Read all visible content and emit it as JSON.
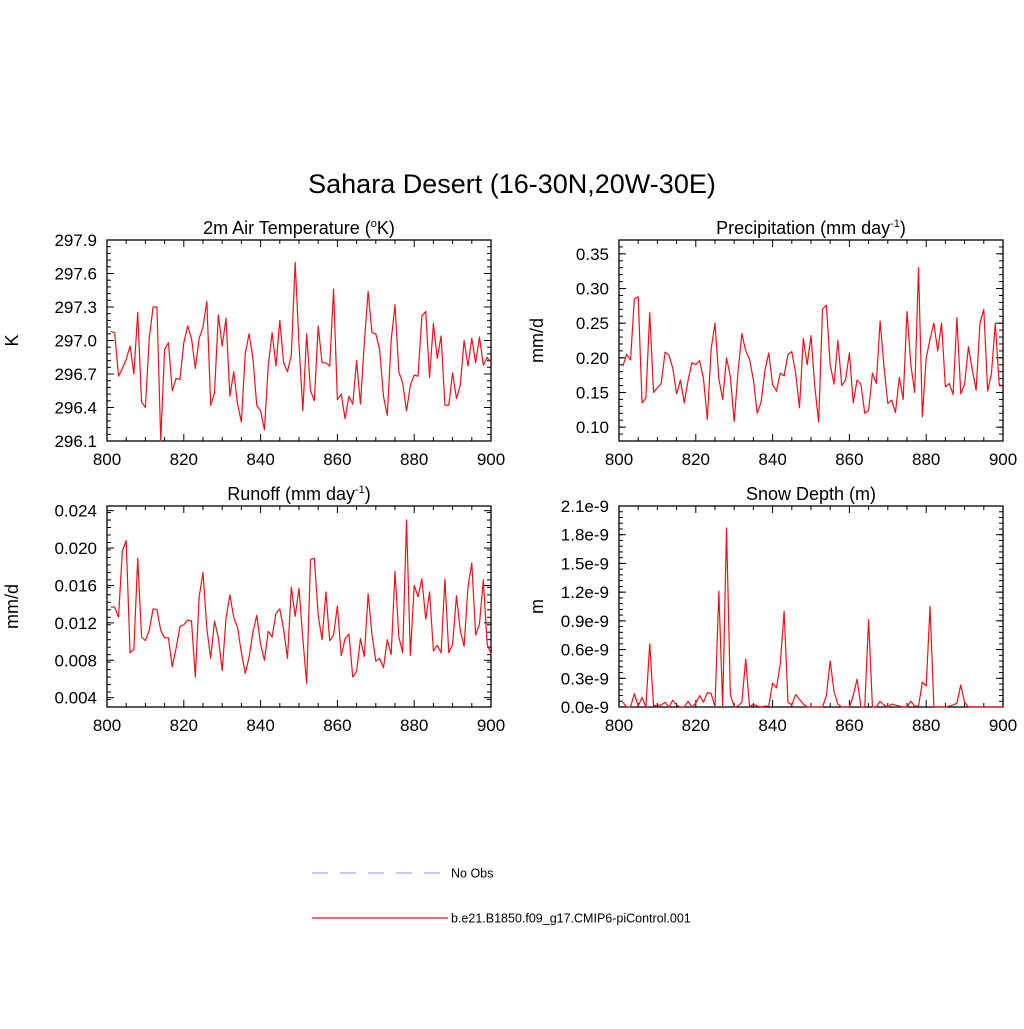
{
  "title": "Sahara Desert (16-30N,20W-30E)",
  "colors": {
    "model": "#e8141b",
    "obs": "#a8a8f0",
    "axis": "#000000"
  },
  "legend": {
    "obs_label": "No Obs",
    "model_label": "b.e21.B1850.f09_g17.CMIP6-piControl.001"
  },
  "chart_data": [
    {
      "type": "line",
      "title": {
        "text": "2m Air Temperature (",
        "sup": "o",
        "tail": "K)"
      },
      "ylabel": "K",
      "xlim": [
        800,
        900
      ],
      "ylim": [
        296.1,
        297.9
      ],
      "xticks": [
        800,
        820,
        840,
        860,
        880,
        900
      ],
      "xtick_labels": [
        "800",
        "820",
        "840",
        "860",
        "880",
        "900"
      ],
      "yticks": [
        296.1,
        296.4,
        296.7,
        297.0,
        297.3,
        297.6,
        297.9
      ],
      "ytick_labels": [
        "296.1",
        "296.4",
        "296.7",
        "297.0",
        "297.3",
        "297.6",
        "297.9"
      ],
      "series": [
        {
          "x_start": 801,
          "values": [
            297.08,
            297.07,
            296.68,
            296.75,
            296.83,
            296.95,
            296.7,
            297.25,
            296.45,
            296.4,
            297.02,
            297.3,
            297.3,
            296.1,
            296.92,
            296.98,
            296.55,
            296.66,
            296.65,
            296.98,
            297.13,
            297.02,
            296.75,
            297.02,
            297.12,
            297.35,
            296.42,
            296.53,
            297.23,
            296.95,
            297.2,
            296.5,
            296.72,
            296.43,
            296.27,
            296.88,
            297.06,
            296.84,
            296.42,
            296.37,
            296.2,
            296.78,
            297.07,
            296.77,
            297.18,
            296.8,
            296.72,
            296.87,
            297.7,
            296.97,
            296.37,
            297.06,
            296.55,
            296.46,
            297.13,
            296.8,
            296.8,
            296.77,
            297.46,
            296.47,
            296.52,
            296.3,
            296.5,
            296.43,
            296.82,
            296.43,
            296.97,
            297.44,
            297.07,
            297.06,
            296.92,
            296.5,
            296.33,
            297.0,
            297.32,
            296.72,
            296.62,
            296.37,
            296.6,
            296.69,
            296.68,
            297.22,
            297.26,
            296.67,
            297.15,
            296.84,
            297.04,
            296.42,
            296.42,
            296.71,
            296.48,
            296.6,
            297.0,
            296.77,
            297.02,
            296.8,
            297.03,
            296.78,
            296.85,
            296.8
          ]
        }
      ]
    },
    {
      "type": "line",
      "title": {
        "text": "Precipitation (mm day",
        "sup": "-1",
        "tail": ")"
      },
      "ylabel": "mm/d",
      "xlim": [
        800,
        900
      ],
      "ylim": [
        0.08,
        0.37
      ],
      "xticks": [
        800,
        820,
        840,
        860,
        880,
        900
      ],
      "xtick_labels": [
        "800",
        "820",
        "840",
        "860",
        "880",
        "900"
      ],
      "yticks": [
        0.1,
        0.15,
        0.2,
        0.25,
        0.3,
        0.35
      ],
      "ytick_labels": [
        "0.10",
        "0.15",
        "0.20",
        "0.25",
        "0.30",
        "0.35"
      ],
      "series": [
        {
          "x_start": 801,
          "values": [
            0.188,
            0.205,
            0.197,
            0.285,
            0.288,
            0.135,
            0.142,
            0.265,
            0.15,
            0.157,
            0.163,
            0.208,
            0.204,
            0.185,
            0.148,
            0.168,
            0.135,
            0.168,
            0.193,
            0.19,
            0.196,
            0.17,
            0.111,
            0.213,
            0.25,
            0.17,
            0.14,
            0.2,
            0.173,
            0.108,
            0.18,
            0.235,
            0.21,
            0.198,
            0.168,
            0.12,
            0.136,
            0.182,
            0.207,
            0.161,
            0.152,
            0.178,
            0.174,
            0.205,
            0.209,
            0.178,
            0.128,
            0.228,
            0.19,
            0.232,
            0.158,
            0.107,
            0.27,
            0.276,
            0.19,
            0.162,
            0.225,
            0.16,
            0.168,
            0.207,
            0.135,
            0.168,
            0.162,
            0.12,
            0.124,
            0.178,
            0.163,
            0.253,
            0.188,
            0.134,
            0.139,
            0.121,
            0.172,
            0.14,
            0.267,
            0.19,
            0.15,
            0.33,
            0.115,
            0.2,
            0.227,
            0.25,
            0.21,
            0.25,
            0.158,
            0.163,
            0.147,
            0.258,
            0.148,
            0.162,
            0.216,
            0.183,
            0.153,
            0.25,
            0.27,
            0.152,
            0.178,
            0.25,
            0.162,
            0.158
          ]
        }
      ]
    },
    {
      "type": "line",
      "title": {
        "text": "Runoff (mm day",
        "sup": "-1",
        "tail": ")"
      },
      "ylabel": "mm/d",
      "xlim": [
        800,
        900
      ],
      "ylim": [
        0.003,
        0.0245
      ],
      "xticks": [
        800,
        820,
        840,
        860,
        880,
        900
      ],
      "xtick_labels": [
        "800",
        "820",
        "840",
        "860",
        "880",
        "900"
      ],
      "yticks": [
        0.004,
        0.008,
        0.012,
        0.016,
        0.02,
        0.024
      ],
      "ytick_labels": [
        "0.004",
        "0.008",
        "0.012",
        "0.016",
        "0.020",
        "0.024"
      ],
      "series": [
        {
          "x_start": 801,
          "values": [
            0.0137,
            0.0137,
            0.0126,
            0.0197,
            0.0208,
            0.0088,
            0.0092,
            0.0189,
            0.0105,
            0.0101,
            0.0112,
            0.0135,
            0.0134,
            0.0112,
            0.0104,
            0.0104,
            0.0073,
            0.0093,
            0.0116,
            0.0118,
            0.0123,
            0.0122,
            0.0062,
            0.0148,
            0.0174,
            0.0114,
            0.0082,
            0.0122,
            0.0104,
            0.0069,
            0.0125,
            0.015,
            0.0126,
            0.0115,
            0.0088,
            0.0066,
            0.0083,
            0.011,
            0.0128,
            0.0097,
            0.008,
            0.0111,
            0.0105,
            0.013,
            0.0135,
            0.0113,
            0.0082,
            0.0158,
            0.0127,
            0.0157,
            0.0103,
            0.0055,
            0.0188,
            0.0189,
            0.0128,
            0.0102,
            0.0153,
            0.0101,
            0.0107,
            0.0138,
            0.0085,
            0.0103,
            0.0108,
            0.0062,
            0.0068,
            0.0103,
            0.0084,
            0.0151,
            0.0108,
            0.0079,
            0.0082,
            0.0072,
            0.0102,
            0.0086,
            0.0175,
            0.0105,
            0.0088,
            0.023,
            0.0085,
            0.016,
            0.0148,
            0.0167,
            0.0124,
            0.0153,
            0.009,
            0.0096,
            0.0088,
            0.0167,
            0.0088,
            0.0097,
            0.0149,
            0.0112,
            0.0095,
            0.0158,
            0.0184,
            0.0107,
            0.0119,
            0.0166,
            0.0097,
            0.0087
          ]
        }
      ]
    },
    {
      "type": "line",
      "title": {
        "text": "Snow Depth (m)",
        "sup": "",
        "tail": ""
      },
      "ylabel": "m",
      "xlim": [
        800,
        900
      ],
      "ylim": [
        0,
        2.1e-09
      ],
      "xticks": [
        800,
        820,
        840,
        860,
        880,
        900
      ],
      "xtick_labels": [
        "800",
        "820",
        "840",
        "860",
        "880",
        "900"
      ],
      "yticks": [
        0,
        3e-10,
        6e-10,
        9e-10,
        1.2e-09,
        1.5e-09,
        1.8e-09,
        2.1e-09
      ],
      "ytick_labels": [
        "0.0e-9",
        "0.3e-9",
        "0.6e-9",
        "0.9e-9",
        "1.2e-9",
        "1.5e-9",
        "1.8e-9",
        "2.1e-9"
      ],
      "series": [
        {
          "x_start": 801,
          "values": [
            5e-11,
            0,
            0,
            1.4e-10,
            1e-11,
            1e-10,
            0,
            6.6e-10,
            1e-11,
            2e-11,
            2e-11,
            5e-11,
            0,
            7e-11,
            2e-11,
            0,
            0,
            6e-11,
            0,
            4e-11,
            1.2e-10,
            5e-11,
            1.5e-10,
            1.4e-10,
            0,
            1.21e-09,
            0,
            1.87e-09,
            1.3e-10,
            0,
            1e-11,
            5e-11,
            5e-10,
            0,
            3e-11,
            1e-11,
            0,
            1e-11,
            1e-11,
            2.5e-10,
            2e-10,
            4.5e-10,
            1e-09,
            5e-11,
            2e-11,
            1.3e-10,
            8e-11,
            3e-11,
            0,
            0,
            0,
            0,
            0,
            1.2e-10,
            4.8e-10,
            1.6e-10,
            3e-11,
            0,
            0,
            0,
            1.2e-10,
            2.9e-10,
            0,
            0,
            9.1e-10,
            0,
            0,
            6e-11,
            2e-11,
            0,
            3e-11,
            2e-11,
            1e-11,
            0,
            0,
            6e-11,
            1e-11,
            1e-11,
            2.6e-10,
            2.2e-10,
            1.05e-09,
            0,
            0,
            0,
            0,
            1e-11,
            2e-11,
            4e-11,
            2.3e-10,
            5e-11,
            0,
            0,
            0,
            0,
            0,
            0,
            0,
            0,
            0,
            0
          ],
          "x_end_override": 900
        }
      ]
    }
  ]
}
